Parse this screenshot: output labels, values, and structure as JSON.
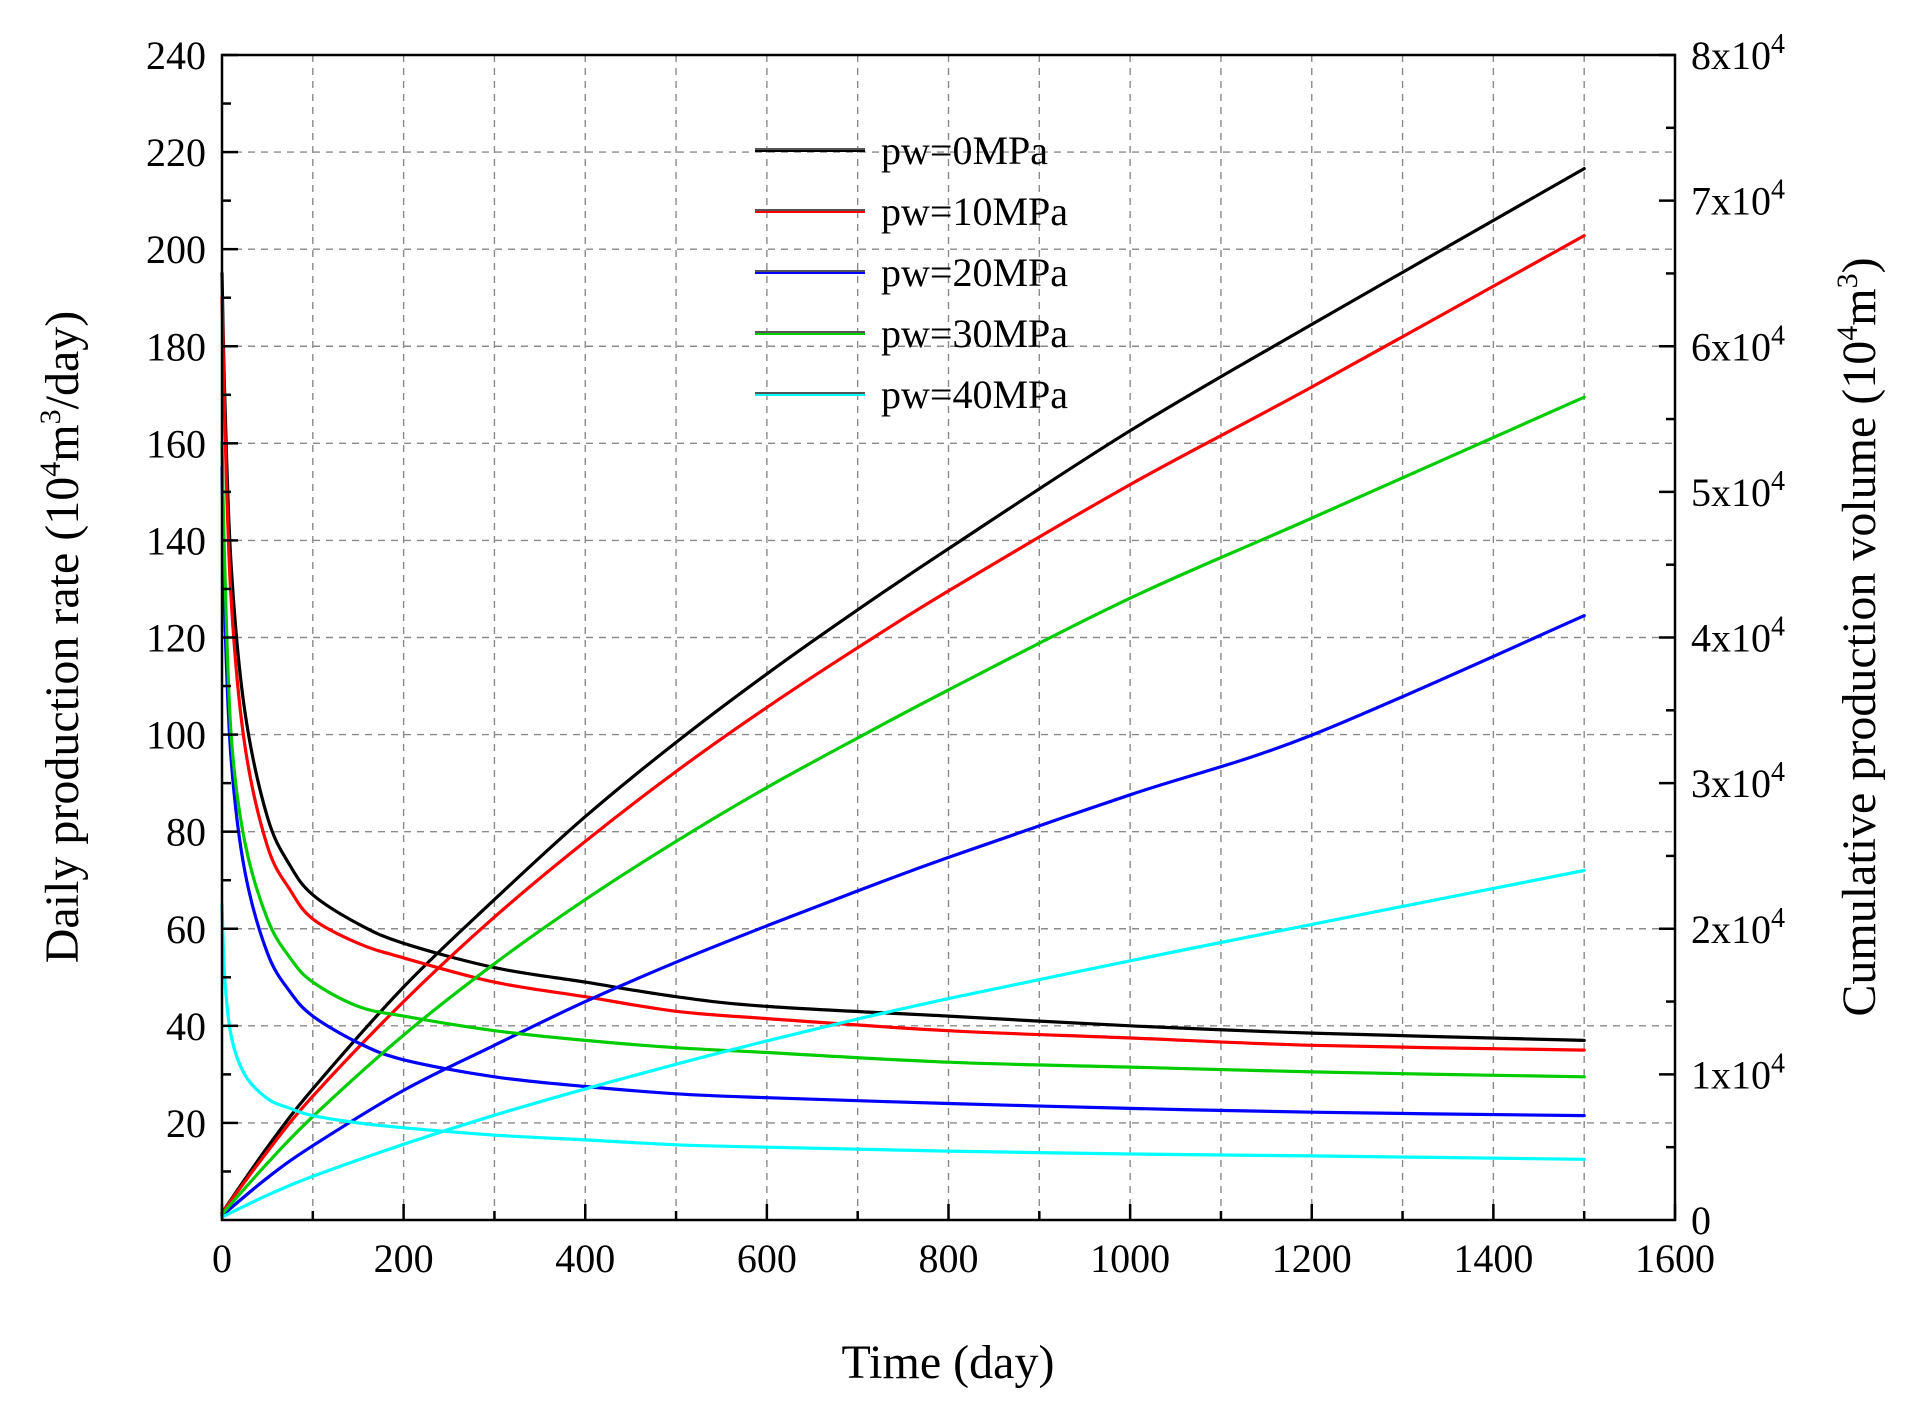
{
  "chart_data": {
    "type": "line",
    "title": "",
    "xlabel": "Time (day)",
    "ylabel_left": "Daily production rate (10^4m^3/day)",
    "ylabel_right": "Cumulative production volume (10^4m^3)",
    "xlim": [
      0,
      1600
    ],
    "ylim_left": [
      0,
      240
    ],
    "ylim_right": [
      0,
      80000
    ],
    "x_ticks": [
      0,
      200,
      400,
      600,
      800,
      1000,
      1200,
      1400,
      1600
    ],
    "x_tick_labels": [
      "0",
      "200",
      "400",
      "600",
      "800",
      "1000",
      "1200",
      "1400",
      "1600"
    ],
    "y_left_ticks": [
      20,
      40,
      60,
      80,
      100,
      120,
      140,
      160,
      180,
      200,
      220,
      240
    ],
    "y_left_tick_labels": [
      "20",
      "40",
      "60",
      "80",
      "100",
      "120",
      "140",
      "160",
      "180",
      "200",
      "220",
      "240"
    ],
    "y_right_ticks": [
      0,
      10000,
      20000,
      30000,
      40000,
      50000,
      60000,
      70000,
      80000
    ],
    "y_right_tick_labels": [
      "0",
      "1x10^4",
      "2x10^4",
      "3x10^4",
      "4x10^4",
      "5x10^4",
      "6x10^4",
      "7x10^4",
      "8x10^4"
    ],
    "grid": true,
    "legend_position": "top-center",
    "series": [
      {
        "name": "pw=0MPa",
        "color": "#000000",
        "rate": {
          "x": [
            0,
            3,
            10,
            25,
            50,
            75,
            100,
            150,
            200,
            300,
            400,
            500,
            600,
            800,
            1000,
            1200,
            1500
          ],
          "y": [
            195,
            170,
            135,
            105,
            83,
            73,
            67,
            61,
            57,
            52,
            49,
            46,
            44,
            42,
            40,
            38.5,
            37
          ]
        },
        "cumulative": {
          "x": [
            0,
            50,
            100,
            200,
            300,
            400,
            500,
            600,
            700,
            800,
            1000,
            1200,
            1500
          ],
          "y": [
            500,
            5000,
            9000,
            16000,
            22000,
            27700,
            32800,
            37500,
            41900,
            46100,
            54200,
            61500,
            72200
          ]
        }
      },
      {
        "name": "pw=10MPa",
        "color": "#ff0000",
        "rate": {
          "x": [
            0,
            3,
            10,
            25,
            50,
            75,
            100,
            150,
            200,
            300,
            400,
            500,
            600,
            800,
            1000,
            1200,
            1500
          ],
          "y": [
            190,
            165,
            128,
            98,
            77,
            68,
            62,
            57,
            54,
            49,
            46,
            43,
            41.5,
            39,
            37.5,
            36,
            35
          ]
        },
        "cumulative": {
          "x": [
            0,
            50,
            100,
            200,
            300,
            400,
            500,
            600,
            700,
            800,
            1000,
            1200,
            1500
          ],
          "y": [
            500,
            4700,
            8500,
            15000,
            20800,
            26000,
            30800,
            35200,
            39300,
            43200,
            50500,
            57200,
            67600
          ]
        }
      },
      {
        "name": "pw=20MPa",
        "color": "#0000ff",
        "rate": {
          "x": [
            0,
            3,
            10,
            25,
            50,
            75,
            100,
            150,
            200,
            300,
            400,
            500,
            600,
            800,
            1000,
            1200,
            1500
          ],
          "y": [
            155,
            125,
            95,
            72,
            55,
            47,
            42,
            36.5,
            33,
            29.5,
            27.5,
            26,
            25.2,
            24,
            23,
            22.2,
            21.5
          ]
        },
        "cumulative": {
          "x": [
            0,
            50,
            100,
            200,
            300,
            400,
            500,
            600,
            700,
            800,
            1000,
            1200,
            1500
          ],
          "y": [
            300,
            2900,
            5100,
            8900,
            12000,
            15000,
            17700,
            20200,
            22600,
            24900,
            29200,
            33300,
            41500
          ]
        }
      },
      {
        "name": "pw=30MPa",
        "color": "#00cc00",
        "rate": {
          "x": [
            0,
            3,
            10,
            25,
            50,
            75,
            100,
            150,
            200,
            300,
            400,
            500,
            600,
            800,
            1000,
            1200,
            1500
          ],
          "y": [
            160,
            135,
            100,
            78,
            62,
            54,
            49,
            44,
            42,
            39,
            37,
            35.5,
            34.5,
            32.5,
            31.5,
            30.5,
            29.5
          ]
        },
        "cumulative": {
          "x": [
            0,
            50,
            100,
            200,
            300,
            400,
            500,
            600,
            700,
            800,
            1000,
            1200,
            1500
          ],
          "y": [
            400,
            3900,
            7100,
            12700,
            17600,
            22000,
            26000,
            29700,
            33100,
            36400,
            42700,
            48200,
            56500
          ]
        }
      },
      {
        "name": "pw=40MPa",
        "color": "#00ffff",
        "rate": {
          "x": [
            0,
            3,
            10,
            25,
            50,
            75,
            100,
            150,
            200,
            300,
            400,
            500,
            600,
            800,
            1000,
            1200,
            1500
          ],
          "y": [
            65,
            50,
            38,
            30,
            25,
            23,
            21.5,
            20,
            19,
            17.5,
            16.5,
            15.5,
            15,
            14.2,
            13.6,
            13.2,
            12.5
          ]
        },
        "cumulative": {
          "x": [
            0,
            50,
            100,
            200,
            300,
            400,
            500,
            600,
            700,
            800,
            1000,
            1200,
            1500
          ],
          "y": [
            200,
            1700,
            3000,
            5200,
            7200,
            9000,
            10700,
            12300,
            13800,
            15200,
            17800,
            20300,
            24000
          ]
        }
      }
    ],
    "legend_line_color": "#555555"
  }
}
